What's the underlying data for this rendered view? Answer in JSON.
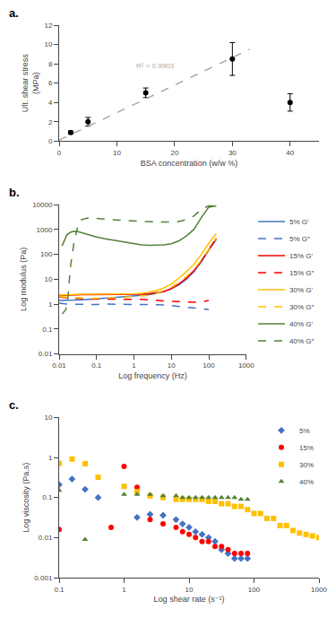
{
  "chart_data": [
    {
      "type": "scatter",
      "title": "a.",
      "xlabel": "BSA concentration (w/w %)",
      "ylabel": "Ult. shear stress\n(MPa)",
      "xlim": [
        0,
        45
      ],
      "ylim": [
        0,
        12
      ],
      "xticks": [
        0,
        10,
        20,
        30,
        40
      ],
      "yticks": [
        0,
        2,
        4,
        6,
        8,
        10,
        12
      ],
      "grid": false,
      "series": [
        {
          "type": "scatter",
          "color": "black",
          "marker": "circle",
          "x": [
            2,
            5,
            15,
            30,
            40
          ],
          "values": [
            0.9,
            2.0,
            5.0,
            8.5,
            4.0
          ],
          "yerr": [
            0.15,
            0.45,
            0.5,
            1.7,
            0.9
          ]
        },
        {
          "type": "line",
          "color": "darkgray",
          "line_style": "dashed",
          "x": [
            0,
            33
          ],
          "values": [
            0.1,
            9.5
          ]
        }
      ],
      "annotations": [
        {
          "text": "R² = 0.9903",
          "x": 13,
          "y": 7.2,
          "color": "darkgray"
        }
      ]
    },
    {
      "type": "line",
      "title": "b.",
      "xlabel": "Log frequency (Hz)",
      "ylabel": "Log modulus (Pa)",
      "log": true,
      "grid": false,
      "legend": "lower right",
      "xlim": [
        0.01,
        1000
      ],
      "ylim": [
        0.01,
        10000
      ],
      "xticks": [
        0.01,
        0.1,
        1,
        10,
        100,
        1000
      ],
      "yticks": [
        0.01,
        0.1,
        1,
        10,
        100,
        1000,
        10000
      ],
      "series": [
        {
          "name": "5% G'",
          "color": "#4472C4",
          "line_style": "solid",
          "x": [
            0.01,
            0.016,
            0.025,
            0.04,
            0.063,
            0.1,
            0.158,
            0.251,
            0.398,
            0.631,
            1.0,
            1.585,
            2.512,
            3.981,
            6.31,
            10.0,
            15.85,
            25.12,
            39.81,
            63.1,
            100.0,
            158.5
          ],
          "values": [
            1.4,
            1.4,
            1.45,
            1.5,
            1.55,
            1.6,
            1.7,
            1.8,
            1.9,
            2.0,
            2.1,
            2.2,
            2.4,
            2.7,
            3.2,
            4.2,
            6.0,
            10.0,
            20.0,
            50.0,
            150.0,
            400.0
          ]
        },
        {
          "name": "5% G″",
          "color": "#4472C4",
          "line_style": "dashed",
          "x": [
            0.01,
            0.016,
            0.025,
            0.04,
            0.063,
            0.1,
            0.158,
            0.251,
            0.398,
            0.631,
            1.0,
            1.585,
            2.512,
            3.981,
            6.31,
            10.0,
            15.85,
            25.12,
            39.81,
            63.1,
            100.0
          ],
          "values": [
            1.1,
            1.0,
            0.98,
            0.97,
            0.96,
            0.97,
            1.0,
            1.0,
            1.0,
            1.0,
            1.0,
            1.0,
            1.0,
            0.95,
            0.93,
            0.88,
            0.82,
            0.75,
            0.7,
            0.65,
            0.6
          ]
        },
        {
          "name": "15% G'",
          "color": "#FF0000",
          "line_style": "solid",
          "x": [
            0.01,
            0.016,
            0.025,
            0.04,
            0.063,
            0.1,
            0.158,
            0.251,
            0.398,
            0.631,
            1.0,
            1.585,
            2.512,
            3.981,
            6.31,
            10.0,
            15.85,
            25.12,
            39.81,
            63.1,
            100.0,
            158.5
          ],
          "values": [
            2.2,
            2.3,
            2.35,
            2.4,
            2.4,
            2.4,
            2.4,
            2.4,
            2.4,
            2.4,
            2.4,
            2.5,
            2.6,
            2.8,
            3.2,
            4.2,
            6.5,
            11.0,
            22.0,
            55.0,
            160.0,
            450.0
          ]
        },
        {
          "name": "15% G″",
          "color": "#FF0000",
          "line_style": "dashed",
          "x": [
            0.01,
            0.016,
            0.025,
            0.04,
            0.063,
            0.1,
            0.158,
            0.251,
            0.398,
            0.631,
            1.0,
            1.585,
            2.512,
            3.981,
            6.31,
            10.0,
            15.85,
            25.12,
            39.81,
            63.1,
            100.0
          ],
          "values": [
            1.9,
            1.8,
            1.7,
            1.65,
            1.6,
            1.6,
            1.6,
            1.6,
            1.6,
            1.6,
            1.6,
            1.55,
            1.5,
            1.4,
            1.35,
            1.3,
            1.25,
            1.2,
            1.2,
            1.25,
            1.4
          ]
        },
        {
          "name": "30% G'",
          "color": "#FFC000",
          "line_style": "solid",
          "x": [
            0.01,
            0.016,
            0.025,
            0.04,
            0.063,
            0.1,
            0.158,
            0.251,
            0.398,
            0.631,
            1.0,
            1.585,
            2.512,
            3.981,
            6.31,
            10.0,
            15.85,
            25.12,
            39.81,
            63.1,
            100.0,
            158.5
          ],
          "values": [
            2.3,
            2.4,
            2.5,
            2.5,
            2.5,
            2.5,
            2.5,
            2.5,
            2.5,
            2.5,
            2.6,
            2.7,
            3.0,
            3.5,
            4.5,
            6.5,
            11.0,
            20.0,
            40.0,
            100.0,
            280.0,
            700.0
          ]
        },
        {
          "name": "30% G″",
          "color": "#FFC000",
          "line_style": "dashed",
          "x": [
            0.01,
            0.016,
            0.025,
            0.04,
            0.063,
            0.1,
            0.158,
            0.251,
            0.398,
            0.631,
            1.0,
            1.585,
            2.512,
            3.981,
            6.31,
            10.0,
            15.85,
            25.12,
            39.81,
            63.1,
            100.0,
            158.5
          ],
          "values": [
            2.0,
            1.9,
            1.8,
            1.7,
            1.7,
            1.7,
            1.7,
            1.7,
            1.8,
            1.9,
            2.0,
            2.1,
            2.3,
            2.7,
            3.5,
            4.8,
            7.5,
            13.0,
            25.0,
            60.0,
            160.0,
            450.0
          ]
        },
        {
          "name": "40% G'",
          "color": "#538135",
          "line_style": "solid",
          "x": [
            0.012,
            0.016,
            0.02,
            0.025,
            0.032,
            0.04,
            0.063,
            0.1,
            0.158,
            0.251,
            0.398,
            0.631,
            1.0,
            1.585,
            2.512,
            3.981,
            6.31,
            10.0,
            15.85,
            25.12,
            39.81,
            63.1,
            100.0,
            158.5
          ],
          "values": [
            220.0,
            600.0,
            780.0,
            850.0,
            830.0,
            750.0,
            600.0,
            500.0,
            430.0,
            380.0,
            330.0,
            290.0,
            260.0,
            240.0,
            230.0,
            230.0,
            240.0,
            270.0,
            350.0,
            550.0,
            1000.0,
            3000.0,
            8000.0,
            9000.0
          ]
        },
        {
          "name": "40% G″",
          "color": "#538135",
          "line_style": "dashed",
          "x": [
            0.012,
            0.015,
            0.017,
            0.02,
            0.025,
            0.032,
            0.04,
            0.063,
            0.1,
            0.158,
            0.251,
            0.398,
            0.631,
            1.0,
            1.585,
            2.512,
            3.981,
            6.31,
            10.0,
            15.85,
            25.12,
            39.81,
            63.1,
            100.0,
            158.5
          ],
          "values": [
            0.4,
            0.6,
            1.5,
            30.0,
            300.0,
            1500.0,
            2500.0,
            3000.0,
            2800.0,
            2600.0,
            2500.0,
            2400.0,
            2300.0,
            2200.0,
            2100.0,
            2050.0,
            2000.0,
            2000.0,
            2000.0,
            2100.0,
            2500.0,
            3500.0,
            6500.0,
            9000.0,
            9000.0
          ]
        }
      ]
    },
    {
      "type": "scatter",
      "title": "c.",
      "xlabel": "Log shear rate (s⁻¹)",
      "ylabel": "Log viscosity (Pa.s)",
      "log": true,
      "grid": false,
      "legend": "upper right",
      "xlim": [
        0.1,
        1000
      ],
      "ylim": [
        0.001,
        10
      ],
      "xticks": [
        0.1,
        1,
        10,
        100,
        1000
      ],
      "yticks": [
        0.001,
        0.01,
        0.1,
        1,
        10
      ],
      "series": [
        {
          "name": "5%",
          "color": "#4472C4",
          "marker": "diamond",
          "x": [
            0.1,
            0.158,
            0.251,
            0.398,
            1.585,
            2.512,
            3.981,
            6.31,
            7.943,
            10.0,
            12.59,
            15.85,
            19.95,
            25.12,
            31.62,
            39.81,
            50.12,
            63.1,
            79.43
          ],
          "values": [
            0.21,
            0.29,
            0.16,
            0.1,
            0.032,
            0.038,
            0.036,
            0.028,
            0.022,
            0.018,
            0.014,
            0.012,
            0.01,
            0.008,
            0.005,
            0.004,
            0.003,
            0.003,
            0.003
          ]
        },
        {
          "name": "15%",
          "color": "#FF0000",
          "marker": "circle",
          "x": [
            0.1,
            0.631,
            1.0,
            1.585,
            2.512,
            3.981,
            6.31,
            7.943,
            10.0,
            12.59,
            15.85,
            19.95,
            25.12,
            31.62,
            39.81,
            50.12,
            63.1,
            79.43
          ],
          "values": [
            0.016,
            0.018,
            0.6,
            0.18,
            0.028,
            0.022,
            0.018,
            0.014,
            0.012,
            0.01,
            0.008,
            0.008,
            0.006,
            0.006,
            0.005,
            0.004,
            0.004,
            0.004
          ]
        },
        {
          "name": "30%",
          "color": "#FFC000",
          "marker": "square",
          "x": [
            0.1,
            0.158,
            0.251,
            0.398,
            1.0,
            1.585,
            2.512,
            3.981,
            6.31,
            7.943,
            10.0,
            12.59,
            15.85,
            19.95,
            25.12,
            31.62,
            39.81,
            50.12,
            63.1,
            79.43,
            100.0,
            125.9,
            158.5,
            199.5,
            251.2,
            316.2,
            398.1,
            501.2,
            631.0,
            794.3,
            1000.0
          ],
          "values": [
            0.71,
            0.91,
            0.7,
            0.32,
            0.19,
            0.14,
            0.11,
            0.1,
            0.09,
            0.09,
            0.09,
            0.09,
            0.09,
            0.08,
            0.08,
            0.07,
            0.07,
            0.06,
            0.06,
            0.05,
            0.04,
            0.04,
            0.03,
            0.03,
            0.02,
            0.02,
            0.015,
            0.013,
            0.012,
            0.011,
            0.01
          ]
        },
        {
          "name": "40%",
          "color": "#538135",
          "marker": "triangle-up",
          "x": [
            0.1,
            0.251,
            1.0,
            1.585,
            2.512,
            3.981,
            6.31,
            7.943,
            10.0,
            12.59,
            15.85,
            19.95,
            25.12,
            31.62,
            39.81,
            50.12,
            63.1,
            79.43
          ],
          "values": [
            0.15,
            0.009,
            0.12,
            0.12,
            0.12,
            0.11,
            0.11,
            0.1,
            0.1,
            0.1,
            0.1,
            0.1,
            0.1,
            0.1,
            0.1,
            0.1,
            0.09,
            0.09
          ]
        }
      ]
    }
  ]
}
